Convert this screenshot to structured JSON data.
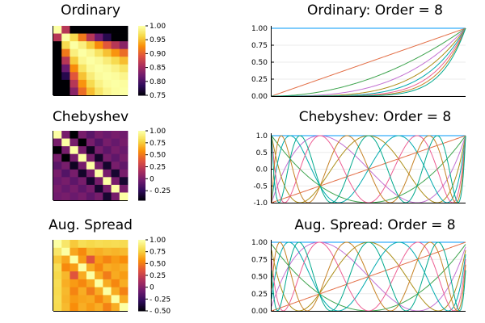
{
  "colorbar_colors": [
    "#000004",
    "#2d0b59",
    "#6c1a6e",
    "#a92e5e",
    "#df513f",
    "#f98e09",
    "#f6d746",
    "#fcffa4"
  ],
  "series_colors": [
    "#009AFA",
    "#E36F47",
    "#3EA44E",
    "#C371D2",
    "#AC8E18",
    "#00AAAE",
    "#ED5E93",
    "#C68225",
    "#00A98D"
  ],
  "chart_data": [
    {
      "type": "heatmap",
      "name": "ordinary",
      "title": "Ordinary",
      "clim": [
        0.75,
        1.0
      ],
      "colorbar_ticks": [
        1.0,
        0.95,
        0.9,
        0.85,
        0.8,
        0.75
      ],
      "colorbar_tick_labels": [
        "1.00",
        "0.95",
        "0.90",
        "0.85",
        "0.80",
        "0.75"
      ],
      "matrix_kind": "monomial_gram",
      "size": 9
    },
    {
      "type": "line",
      "name": "ordinary-basis",
      "title": "Ordinary: Order = 8",
      "xlim": [
        0,
        1
      ],
      "ylim": [
        0,
        1
      ],
      "yticks": [
        0.0,
        0.25,
        0.5,
        0.75,
        1.0
      ],
      "ytick_labels": [
        "0.00",
        "0.25",
        "0.50",
        "0.75",
        "1.00"
      ],
      "basis": "monomial",
      "order": 8
    },
    {
      "type": "heatmap",
      "name": "chebyshev",
      "title": "Chebyshev",
      "clim": [
        -0.45,
        1.0
      ],
      "colorbar_ticks": [
        1.0,
        0.75,
        0.5,
        0.25,
        0,
        -0.25
      ],
      "colorbar_tick_labels": [
        "1.00",
        "0.75",
        "0.50",
        "0.25",
        "0",
        "- 0.25"
      ],
      "matrix_kind": "chebyshev_gram",
      "size": 9
    },
    {
      "type": "line",
      "name": "chebyshev-basis",
      "title": "Chebyshev: Order = 8",
      "xlim": [
        0,
        1
      ],
      "ylim": [
        -1,
        1
      ],
      "yticks": [
        -1.0,
        -0.5,
        0.0,
        0.5,
        1.0
      ],
      "ytick_labels": [
        "-1.0",
        "-0.5",
        "0.0",
        "0.5",
        "1.0"
      ],
      "basis": "chebyshev",
      "order": 8
    },
    {
      "type": "heatmap",
      "name": "aug-spread",
      "title": "Aug. Spread",
      "clim": [
        -0.5,
        1.0
      ],
      "colorbar_ticks": [
        1.0,
        0.75,
        0.5,
        0.25,
        0,
        -0.25,
        -0.5
      ],
      "colorbar_tick_labels": [
        "1.00",
        "0.75",
        "0.50",
        "0.25",
        "0",
        "- 0.25",
        "- 0.50"
      ],
      "matrix_kind": "aug_spread_gram",
      "size": 9
    },
    {
      "type": "line",
      "name": "aug-spread-basis",
      "title": "Aug. Spread: Order = 8",
      "xlim": [
        0,
        1
      ],
      "ylim": [
        0,
        1
      ],
      "yticks": [
        0.0,
        0.25,
        0.5,
        0.75,
        1.0
      ],
      "ytick_labels": [
        "0.00",
        "0.25",
        "0.50",
        "0.75",
        "1.00"
      ],
      "basis": "aug_spread",
      "order": 8
    }
  ]
}
